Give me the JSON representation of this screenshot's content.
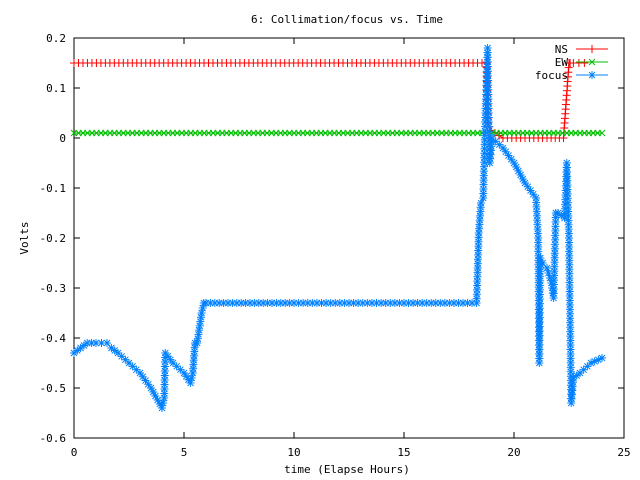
{
  "chart_data": {
    "type": "line",
    "title": "6: Collimation/focus vs. Time",
    "xlabel": "time (Elapse Hours)",
    "ylabel": "Volts",
    "xlim": [
      0,
      25
    ],
    "ylim": [
      -0.6,
      0.2
    ],
    "x_ticks": [
      0,
      5,
      10,
      15,
      20,
      25
    ],
    "x_tick_labels": [
      "0",
      "5",
      "10",
      "15",
      "20",
      "25"
    ],
    "y_ticks": [
      -0.6,
      -0.5,
      -0.4,
      -0.3,
      -0.2,
      -0.1,
      0,
      0.1,
      0.2
    ],
    "y_tick_labels": [
      "-0.6",
      "-0.5",
      "-0.4",
      "-0.3",
      "-0.2",
      "-0.1",
      "0",
      "0.1",
      "0.2"
    ],
    "grid": false,
    "legend_position": "top-right",
    "series": [
      {
        "name": "NS",
        "color": "#ff0000",
        "marker": "plus",
        "x": [
          0,
          18.75,
          18.8,
          18.95,
          19.5,
          20.5,
          21.5,
          22.25,
          22.3,
          22.5,
          22.55,
          22.7,
          23.2
        ],
        "y": [
          0.15,
          0.15,
          0.03,
          0.015,
          0.0,
          0.0,
          0.0,
          0.0,
          0.03,
          0.15,
          0.15,
          0.15,
          0.15
        ]
      },
      {
        "name": "EW",
        "color": "#00c000",
        "marker": "x",
        "x": [
          0,
          10,
          18.75,
          19,
          20,
          22,
          24
        ],
        "y": [
          0.01,
          0.01,
          0.01,
          0.01,
          0.01,
          0.01,
          0.01
        ]
      },
      {
        "name": "focus",
        "color": "#0080ff",
        "marker": "star",
        "x": [
          0,
          0.3,
          0.6,
          1,
          1.5,
          1.7,
          2,
          2.5,
          3,
          3.5,
          4,
          4.1,
          4.15,
          4.5,
          5,
          5.3,
          5.4,
          5.5,
          5.6,
          5.8,
          5.9,
          6,
          10,
          15,
          18.3,
          18.4,
          18.5,
          18.6,
          18.7,
          18.8,
          18.85,
          18.9,
          19,
          19.5,
          20,
          20.5,
          21,
          21.1,
          21.15,
          21.2,
          21.3,
          21.5,
          21.7,
          21.8,
          21.9,
          22,
          22.3,
          22.4,
          22.5,
          22.6,
          22.7,
          23,
          23.5,
          24
        ],
        "y": [
          -0.43,
          -0.42,
          -0.41,
          -0.41,
          -0.41,
          -0.42,
          -0.43,
          -0.45,
          -0.47,
          -0.5,
          -0.54,
          -0.52,
          -0.43,
          -0.45,
          -0.47,
          -0.49,
          -0.47,
          -0.41,
          -0.41,
          -0.35,
          -0.33,
          -0.33,
          -0.33,
          -0.33,
          -0.33,
          -0.19,
          -0.13,
          -0.12,
          0.05,
          0.18,
          0.05,
          -0.05,
          0.0,
          -0.02,
          -0.05,
          -0.09,
          -0.12,
          -0.2,
          -0.45,
          -0.24,
          -0.25,
          -0.26,
          -0.29,
          -0.32,
          -0.15,
          -0.15,
          -0.16,
          -0.05,
          -0.2,
          -0.53,
          -0.48,
          -0.47,
          -0.45,
          -0.44
        ]
      }
    ]
  }
}
